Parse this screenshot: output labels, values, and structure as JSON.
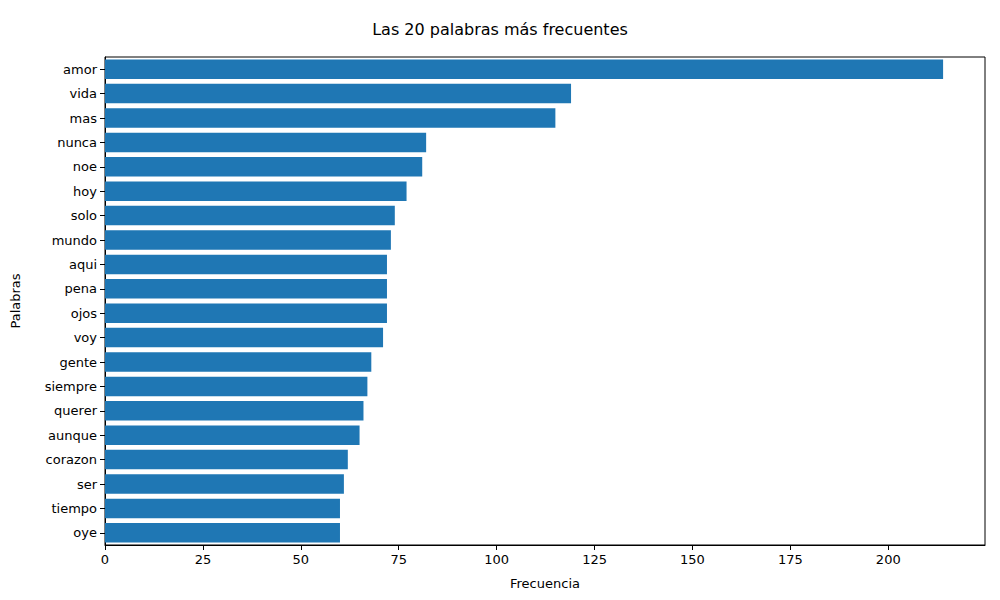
{
  "chart_data": {
    "type": "bar",
    "title": "Las 20 palabras más frecuentes",
    "orientation": "horizontal",
    "xlabel": "Frecuencia",
    "ylabel": "Palabras",
    "categories": [
      "amor",
      "vida",
      "mas",
      "nunca",
      "noe",
      "hoy",
      "solo",
      "mundo",
      "aqui",
      "pena",
      "ojos",
      "voy",
      "gente",
      "siempre",
      "querer",
      "aunque",
      "corazon",
      "ser",
      "tiempo",
      "oye"
    ],
    "values": [
      214,
      119,
      115,
      82,
      81,
      77,
      74,
      73,
      72,
      72,
      72,
      71,
      68,
      67,
      66,
      65,
      62,
      61,
      60,
      60
    ],
    "color": "#1f77b4",
    "xlim": [
      0,
      224.7
    ],
    "xticks": [
      0,
      25,
      50,
      75,
      100,
      125,
      150,
      175,
      200
    ],
    "grid": false
  }
}
